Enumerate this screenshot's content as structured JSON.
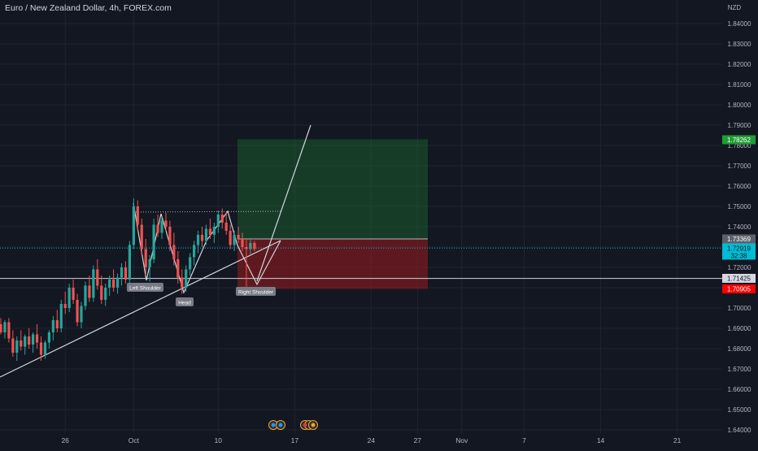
{
  "header": {
    "title": "Euro / New Zealand Dollar, 4h, FOREX.com",
    "currency": "NZD"
  },
  "chart_data": {
    "type": "candlestick",
    "symbol": "EURNZD",
    "timeframe": "4h",
    "grid": true,
    "ylim": [
      1.64,
      1.845
    ],
    "y_ticks": [
      "1.84000",
      "1.83000",
      "1.82000",
      "1.81000",
      "1.80000",
      "1.79000",
      "1.78000",
      "1.77000",
      "1.76000",
      "1.75000",
      "1.74000",
      "1.73000",
      "1.72000",
      "1.71000",
      "1.70000",
      "1.69000",
      "1.68000",
      "1.67000",
      "1.66000",
      "1.65000",
      "1.64000"
    ],
    "x_ticks": [
      {
        "label": "26",
        "i": 16
      },
      {
        "label": "Oct",
        "i": 33
      },
      {
        "label": "10",
        "i": 54
      },
      {
        "label": "17",
        "i": 73
      },
      {
        "label": "24",
        "i": 92
      },
      {
        "label": "27",
        "i": 103.5
      },
      {
        "label": "Nov",
        "i": 114.5
      },
      {
        "label": "7",
        "i": 130
      },
      {
        "label": "14",
        "i": 149
      },
      {
        "label": "21",
        "i": 168
      }
    ],
    "colors": {
      "up": "#26a69a",
      "down": "#ef5350",
      "background": "#131722",
      "grid": "#1f2330",
      "trendline": "#d1d4dc",
      "target": "#1e7a32",
      "stop": "#b71c1c",
      "current": "#00bcd4"
    },
    "candles": [
      [
        1.692,
        1.695,
        1.687,
        1.688
      ],
      [
        1.688,
        1.694,
        1.685,
        1.693
      ],
      [
        1.693,
        1.695,
        1.683,
        1.685
      ],
      [
        1.685,
        1.689,
        1.676,
        1.678
      ],
      [
        1.678,
        1.686,
        1.674,
        1.684
      ],
      [
        1.684,
        1.689,
        1.679,
        1.681
      ],
      [
        1.681,
        1.687,
        1.677,
        1.686
      ],
      [
        1.686,
        1.69,
        1.68,
        1.682
      ],
      [
        1.682,
        1.688,
        1.678,
        1.687
      ],
      [
        1.687,
        1.692,
        1.68,
        1.683
      ],
      [
        1.683,
        1.686,
        1.674,
        1.677
      ],
      [
        1.677,
        1.684,
        1.675,
        1.683
      ],
      [
        1.683,
        1.689,
        1.68,
        1.688
      ],
      [
        1.688,
        1.696,
        1.684,
        1.694
      ],
      [
        1.694,
        1.699,
        1.688,
        1.69
      ],
      [
        1.69,
        1.704,
        1.688,
        1.702
      ],
      [
        1.702,
        1.708,
        1.697,
        1.7
      ],
      [
        1.7,
        1.712,
        1.698,
        1.71
      ],
      [
        1.71,
        1.714,
        1.702,
        1.704
      ],
      [
        1.704,
        1.707,
        1.691,
        1.693
      ],
      [
        1.693,
        1.703,
        1.69,
        1.701
      ],
      [
        1.701,
        1.713,
        1.699,
        1.711
      ],
      [
        1.711,
        1.716,
        1.703,
        1.705
      ],
      [
        1.705,
        1.721,
        1.703,
        1.719
      ],
      [
        1.719,
        1.724,
        1.709,
        1.711
      ],
      [
        1.711,
        1.716,
        1.702,
        1.704
      ],
      [
        1.704,
        1.712,
        1.701,
        1.71
      ],
      [
        1.71,
        1.716,
        1.706,
        1.714
      ],
      [
        1.714,
        1.719,
        1.708,
        1.71
      ],
      [
        1.71,
        1.717,
        1.707,
        1.715
      ],
      [
        1.715,
        1.722,
        1.711,
        1.72
      ],
      [
        1.72,
        1.723,
        1.712,
        1.714
      ],
      [
        1.714,
        1.733,
        1.712,
        1.731
      ],
      [
        1.731,
        1.754,
        1.729,
        1.75
      ],
      [
        1.75,
        1.753,
        1.738,
        1.741
      ],
      [
        1.741,
        1.744,
        1.726,
        1.729
      ],
      [
        1.729,
        1.734,
        1.716,
        1.72
      ],
      [
        1.72,
        1.726,
        1.713,
        1.724
      ],
      [
        1.724,
        1.744,
        1.722,
        1.741
      ],
      [
        1.741,
        1.746,
        1.735,
        1.737
      ],
      [
        1.737,
        1.745,
        1.734,
        1.743
      ],
      [
        1.743,
        1.747,
        1.738,
        1.74
      ],
      [
        1.74,
        1.743,
        1.728,
        1.731
      ],
      [
        1.731,
        1.737,
        1.721,
        1.724
      ],
      [
        1.724,
        1.728,
        1.712,
        1.715
      ],
      [
        1.715,
        1.719,
        1.707,
        1.71
      ],
      [
        1.71,
        1.721,
        1.708,
        1.719
      ],
      [
        1.719,
        1.727,
        1.716,
        1.725
      ],
      [
        1.725,
        1.733,
        1.721,
        1.731
      ],
      [
        1.731,
        1.738,
        1.727,
        1.736
      ],
      [
        1.736,
        1.74,
        1.73,
        1.733
      ],
      [
        1.733,
        1.741,
        1.731,
        1.739
      ],
      [
        1.739,
        1.744,
        1.734,
        1.736
      ],
      [
        1.736,
        1.742,
        1.732,
        1.74
      ],
      [
        1.74,
        1.748,
        1.737,
        1.746
      ],
      [
        1.746,
        1.749,
        1.739,
        1.742
      ],
      [
        1.742,
        1.747,
        1.736,
        1.738
      ],
      [
        1.738,
        1.741,
        1.729,
        1.731
      ],
      [
        1.731,
        1.738,
        1.728,
        1.736
      ],
      [
        1.736,
        1.74,
        1.732,
        1.734
      ],
      [
        1.734,
        1.737,
        1.728,
        1.73
      ],
      [
        1.73,
        1.734,
        1.709,
        1.729
      ],
      [
        1.729,
        1.734,
        1.726,
        1.732
      ],
      [
        1.732,
        1.733,
        1.728,
        1.729
      ]
    ],
    "levels": {
      "target": "1.78262",
      "entry": "1.73369",
      "current": "1.72919",
      "countdown": "32:38",
      "neckline": "1.71425",
      "stop": "1.70905"
    },
    "annotations": [
      "Left Shoulder",
      "Head",
      "Right Shoulder"
    ]
  }
}
